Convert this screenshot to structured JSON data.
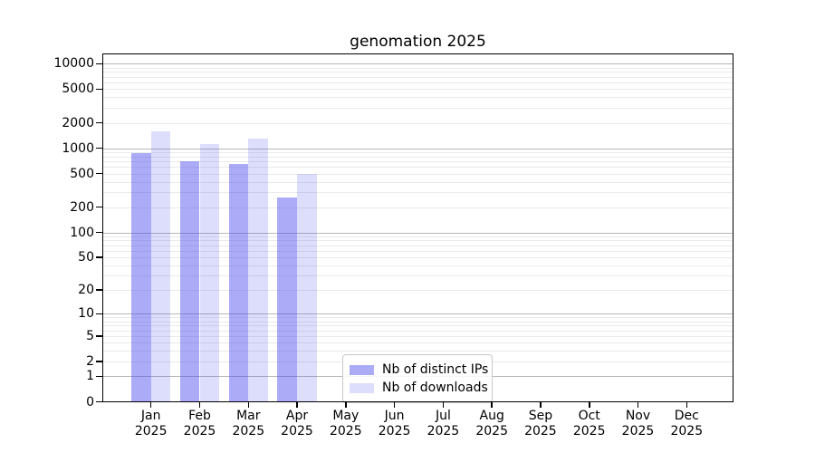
{
  "title": "genomation 2025",
  "chart_data": {
    "type": "bar",
    "scale": "log1p",
    "title": "genomation 2025",
    "xlabel": "",
    "ylabel": "",
    "ylim": [
      0,
      13000
    ],
    "grid": true,
    "legend_position": "bottom-center",
    "categories": [
      "Jan",
      "Feb",
      "Mar",
      "Apr",
      "May",
      "Jun",
      "Jul",
      "Aug",
      "Sep",
      "Oct",
      "Nov",
      "Dec"
    ],
    "year": "2025",
    "y_ticks": [
      0,
      1,
      2,
      5,
      10,
      20,
      50,
      100,
      200,
      500,
      1000,
      2000,
      5000,
      10000
    ],
    "series": [
      {
        "name": "Nb of distinct IPs",
        "key": "distinct-ips",
        "color": "rgba(68, 68, 238, 0.45)",
        "values": [
          870,
          700,
          650,
          260,
          null,
          null,
          null,
          null,
          null,
          null,
          null,
          null
        ]
      },
      {
        "name": "Nb of downloads",
        "key": "downloads",
        "color": "rgba(68, 68, 238, 0.18)",
        "values": [
          1570,
          1130,
          1300,
          500,
          null,
          null,
          null,
          null,
          null,
          null,
          null,
          null
        ]
      }
    ]
  },
  "colors": {
    "bar_dark": "#acacf8",
    "bar_light": "#ddddfc",
    "grid_major": "#b8b8b8",
    "grid_minor": "#eaeaea",
    "axis": "#000000",
    "background": "#ffffff"
  }
}
